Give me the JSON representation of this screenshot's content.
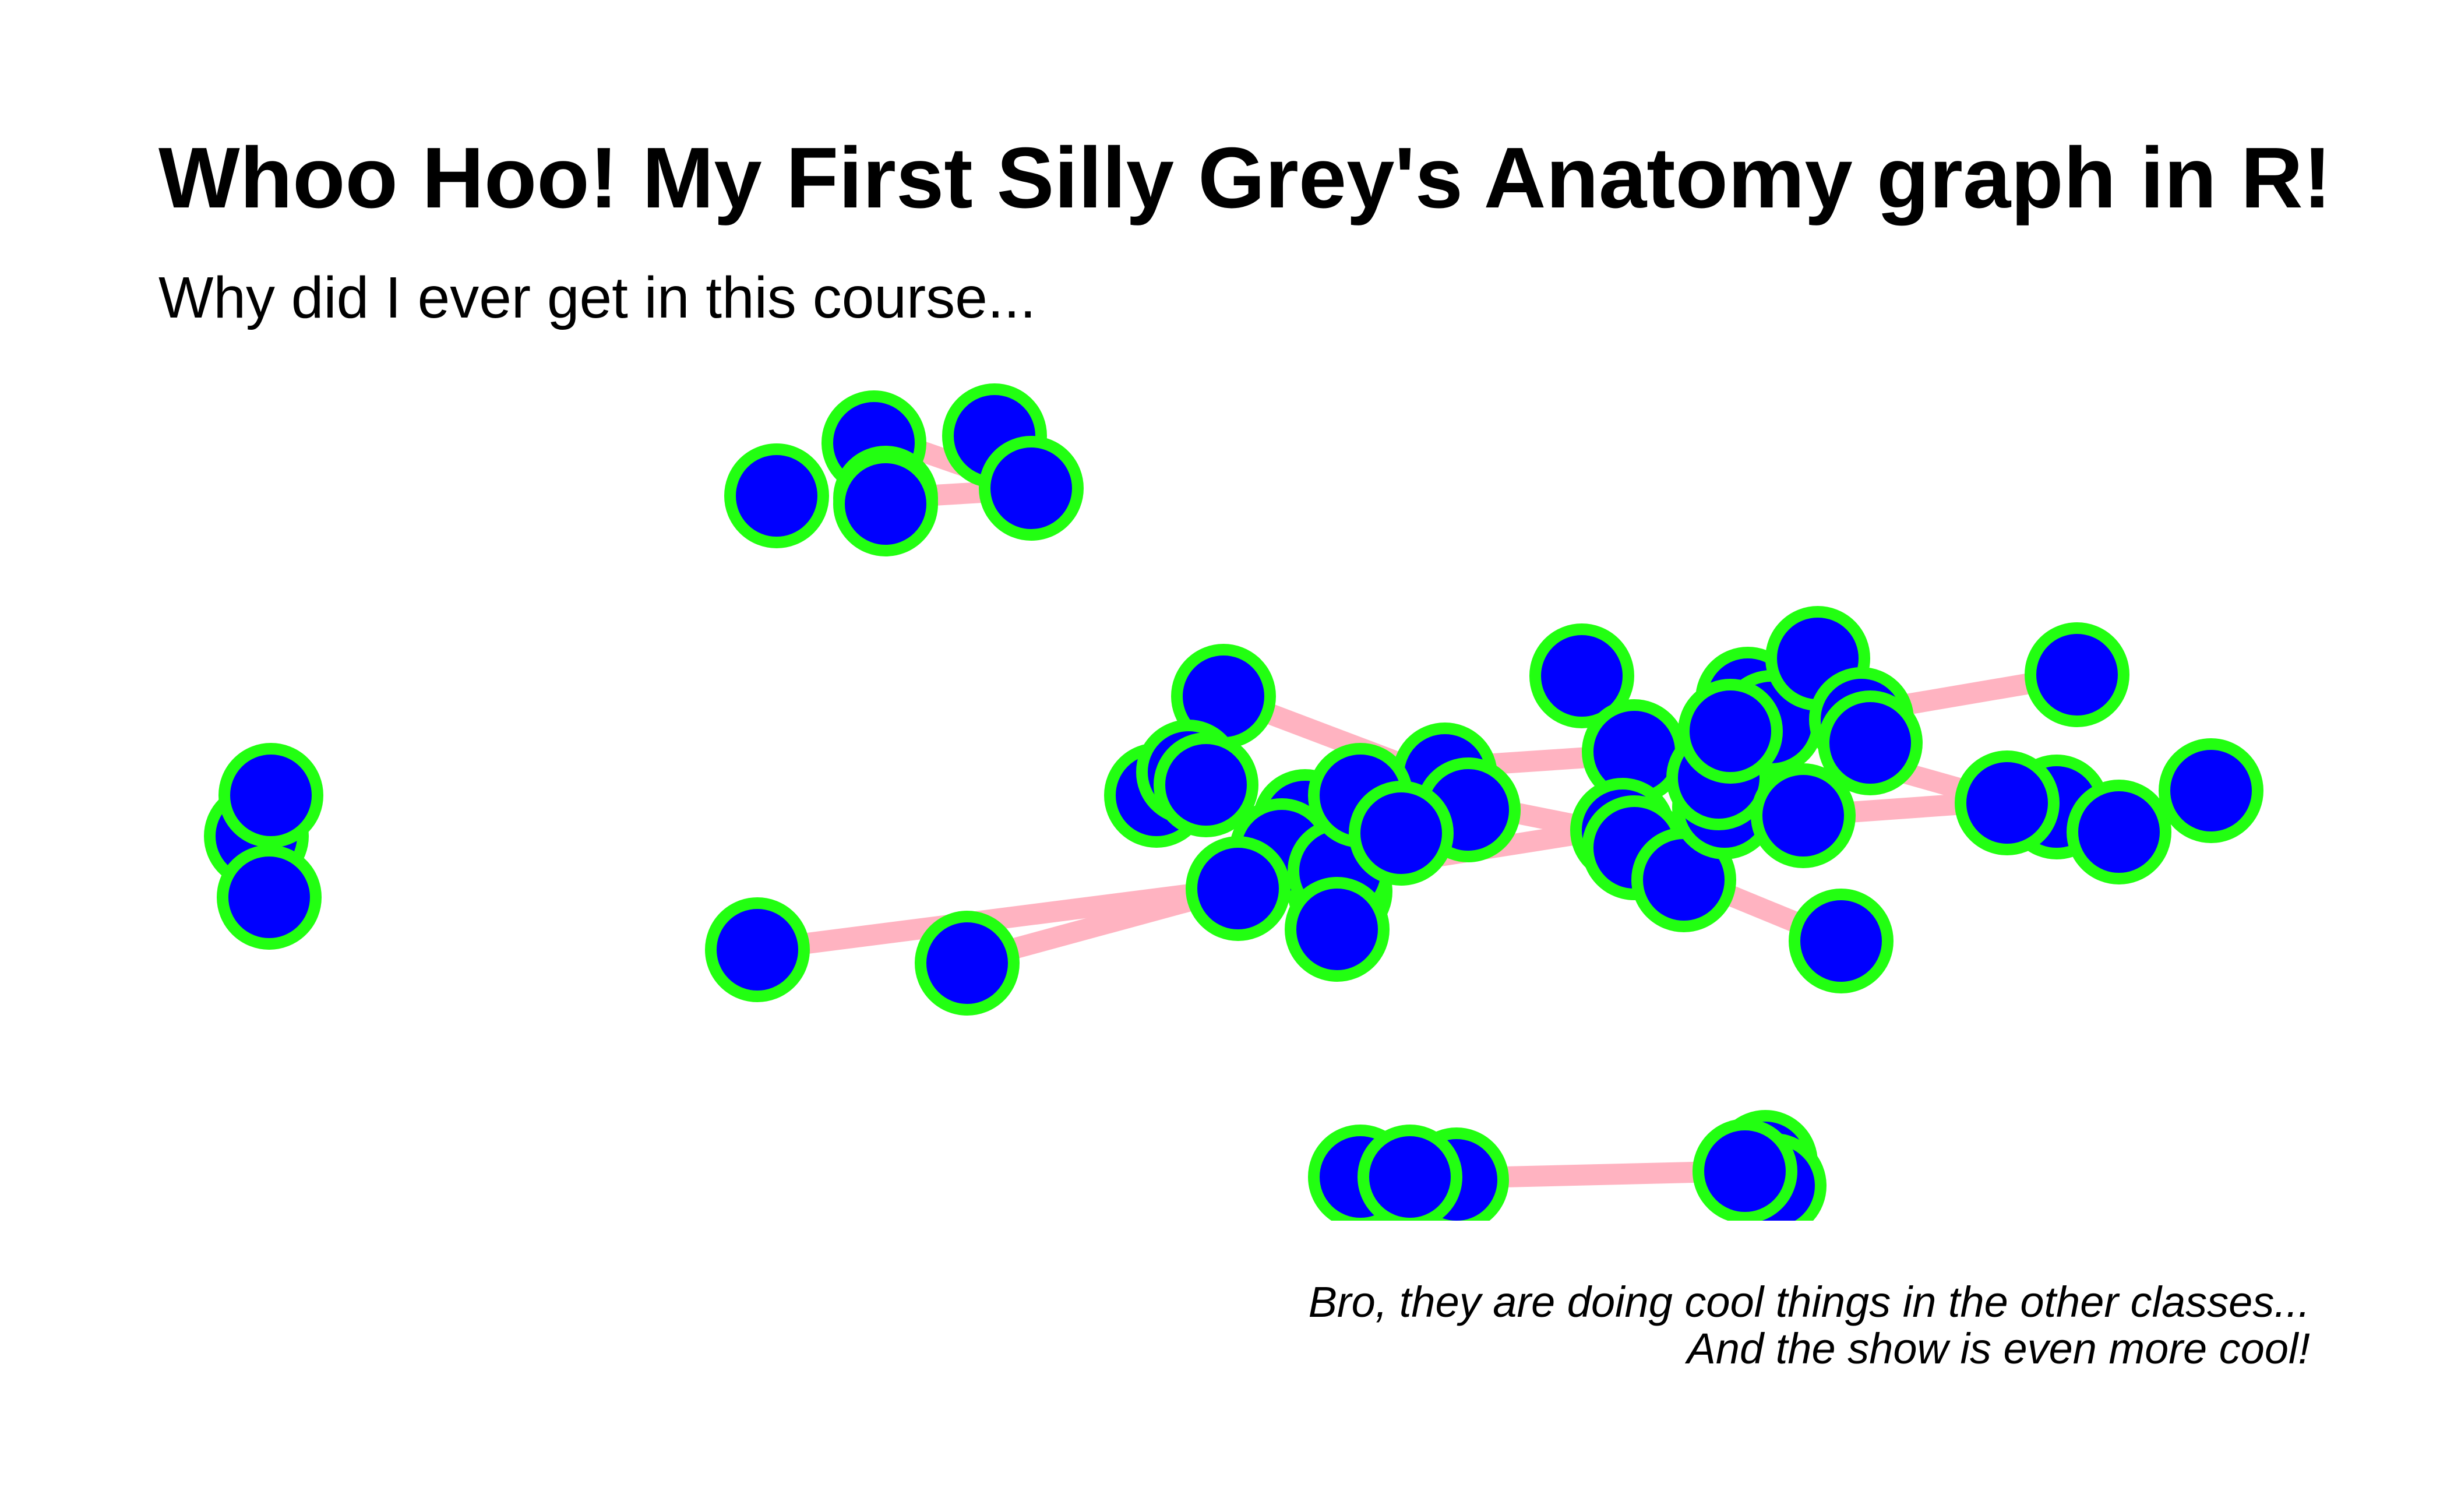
{
  "title": "Whoo Hoo! My First Silly Grey's Anatomy graph in R!",
  "subtitle": "Why did I ever get in this course...",
  "caption": {
    "line1": "Bro, they are doing cool things in the other classes...",
    "line2": "And the show is even more cool!"
  },
  "colors": {
    "node_fill": "#0000FF",
    "node_stroke": "#22FF11",
    "edge": "#FFB3C1",
    "background": "#FFFFFF"
  }
}
